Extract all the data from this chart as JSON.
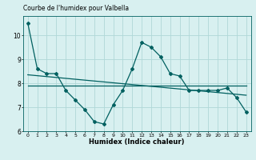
{
  "x": [
    0,
    1,
    2,
    3,
    4,
    5,
    6,
    7,
    8,
    9,
    10,
    11,
    12,
    13,
    14,
    15,
    16,
    17,
    18,
    19,
    20,
    21,
    22,
    23
  ],
  "line1": [
    10.5,
    8.6,
    8.4,
    8.4,
    7.7,
    7.3,
    6.9,
    6.4,
    6.3,
    7.1,
    7.7,
    8.6,
    9.7,
    9.5,
    9.1,
    8.4,
    8.3,
    7.7,
    7.7,
    7.7,
    7.7,
    7.8,
    7.4,
    6.8
  ],
  "line2_x": [
    0,
    23
  ],
  "line2_y": [
    7.9,
    7.9
  ],
  "line3_x": [
    0,
    23
  ],
  "line3_y": [
    8.35,
    7.5
  ],
  "line_color": "#006060",
  "bg_color": "#d8f0f0",
  "grid_color": "#b0d8d8",
  "title": "Courbe de l'humidex pour Valbella",
  "xlabel": "Humidex (Indice chaleur)",
  "ylim": [
    6,
    10.8
  ],
  "xlim": [
    -0.5,
    23.5
  ],
  "yticks": [
    6,
    7,
    8,
    9,
    10
  ],
  "xticks": [
    0,
    1,
    2,
    3,
    4,
    5,
    6,
    7,
    8,
    9,
    10,
    11,
    12,
    13,
    14,
    15,
    16,
    17,
    18,
    19,
    20,
    21,
    22,
    23
  ]
}
